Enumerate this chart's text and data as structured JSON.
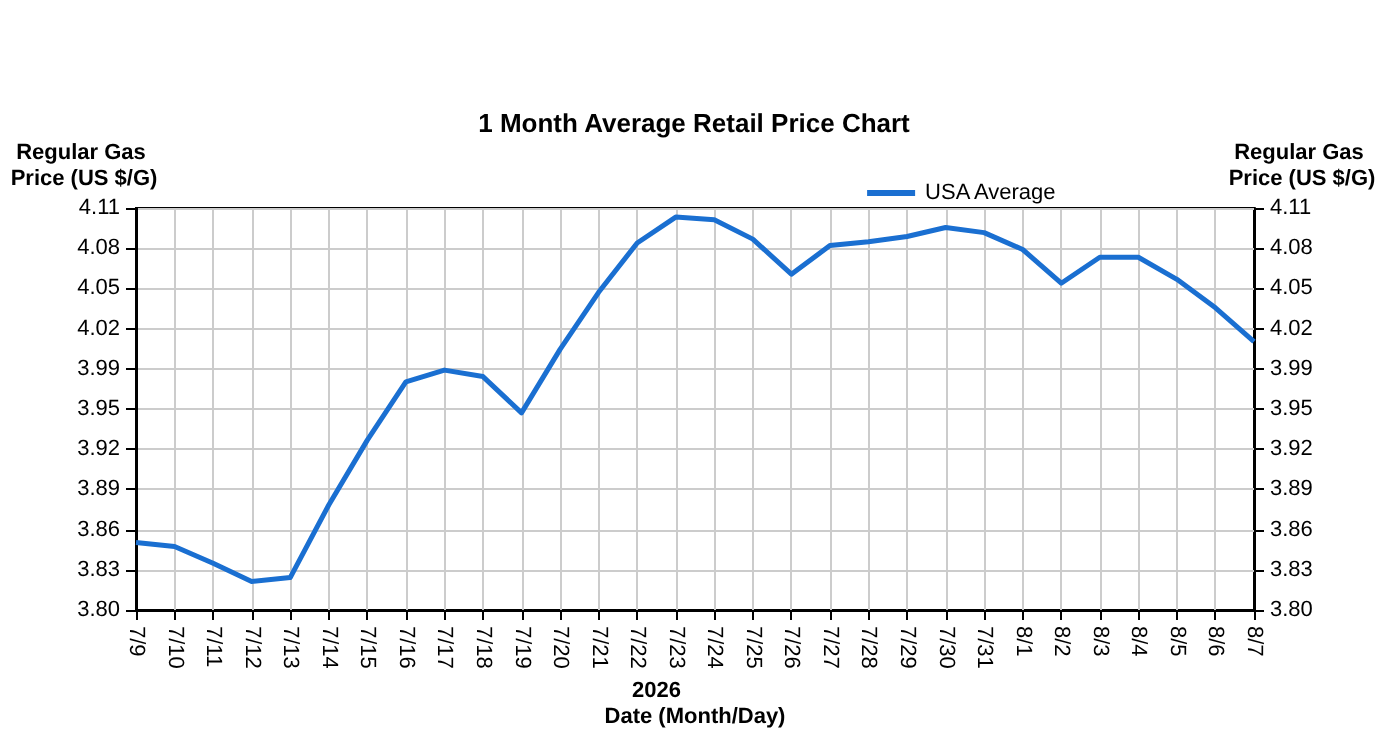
{
  "chart_data": {
    "type": "line",
    "title": "1 Month Average Retail Price Chart",
    "xlabel": "Date (Month/Day)",
    "ylabel": "Regular Gas Price (US $/G)",
    "y2label": "Regular Gas Price (US $/G)",
    "annotations": [
      "2026"
    ],
    "categories": [
      "7/9",
      "7/10",
      "7/11",
      "7/12",
      "7/13",
      "7/14",
      "7/15",
      "7/16",
      "7/17",
      "7/18",
      "7/19",
      "7/20",
      "7/21",
      "7/22",
      "7/23",
      "7/24",
      "7/25",
      "7/26",
      "7/27",
      "7/28",
      "7/29",
      "7/30",
      "7/31",
      "8/1",
      "8/2",
      "8/3",
      "8/4",
      "8/5",
      "8/6",
      "8/7"
    ],
    "series": [
      {
        "name": "USA Average",
        "color": "#1a6fd1",
        "values": [
          3.852,
          3.849,
          3.836,
          3.822,
          3.825,
          3.881,
          3.931,
          3.976,
          3.985,
          3.98,
          3.952,
          4.001,
          4.045,
          4.083,
          4.103,
          4.101,
          4.086,
          4.059,
          4.081,
          4.084,
          4.088,
          4.095,
          4.091,
          4.078,
          4.052,
          4.072,
          4.072,
          4.055,
          4.033,
          4.007
        ]
      }
    ],
    "ylim": [
      3.8,
      4.11
    ],
    "yticks": [
      {
        "value": 3.8,
        "label": "3.80"
      },
      {
        "value": 3.831,
        "label": "3.83"
      },
      {
        "value": 3.862,
        "label": "3.86"
      },
      {
        "value": 3.893,
        "label": "3.89"
      },
      {
        "value": 3.924,
        "label": "3.92"
      },
      {
        "value": 3.955,
        "label": "3.95"
      },
      {
        "value": 3.986,
        "label": "3.99"
      },
      {
        "value": 4.017,
        "label": "4.02"
      },
      {
        "value": 4.048,
        "label": "4.05"
      },
      {
        "value": 4.079,
        "label": "4.08"
      },
      4.11
    ],
    "y2lim": [
      3.8,
      4.11
    ],
    "y2ticks": [
      {
        "value": 3.8,
        "label": "3.80"
      },
      {
        "value": 3.831,
        "label": "3.83"
      },
      {
        "value": 3.862,
        "label": "3.86"
      },
      {
        "value": 3.893,
        "label": "3.89"
      },
      {
        "value": 3.924,
        "label": "3.92"
      },
      {
        "value": 3.955,
        "label": "3.95"
      },
      {
        "value": 3.986,
        "label": "3.99"
      },
      {
        "value": 4.017,
        "label": "4.02"
      },
      {
        "value": 4.048,
        "label": "4.05"
      },
      {
        "value": 4.079,
        "label": "4.08"
      },
      4.11
    ],
    "grid": true,
    "legend": "top right",
    "line_style": "solid",
    "marker": "none"
  }
}
